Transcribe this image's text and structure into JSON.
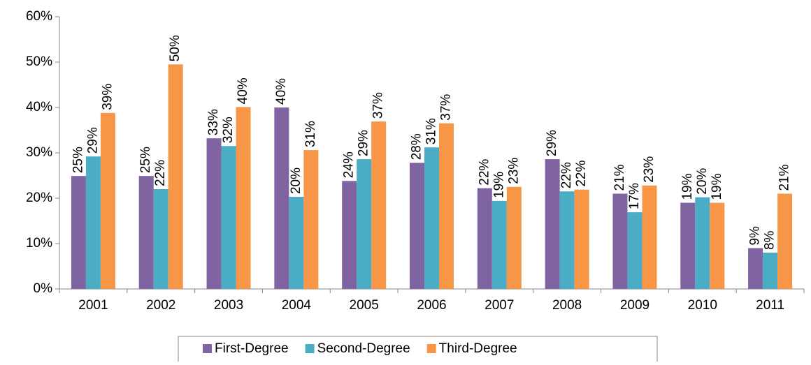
{
  "chart_data": {
    "type": "bar",
    "categories": [
      "2001",
      "2002",
      "2003",
      "2004",
      "2005",
      "2006",
      "2007",
      "2008",
      "2009",
      "2010",
      "2011"
    ],
    "series": [
      {
        "name": "First-Degree",
        "color": "#8064a2",
        "values": [
          24.9,
          24.9,
          33.2,
          40,
          23.8,
          27.8,
          22.2,
          28.6,
          21,
          19,
          9
        ],
        "value_labels": [
          "25%",
          "25%",
          "33%",
          "40%",
          "24%",
          "28%",
          "22%",
          "29%",
          "21%",
          "19%",
          "9%"
        ]
      },
      {
        "name": "Second-Degree",
        "color": "#4bacc6",
        "values": [
          29.2,
          22,
          31.5,
          20.3,
          28.6,
          31.2,
          19.4,
          21.5,
          16.9,
          20.2,
          8
        ],
        "value_labels": [
          "29%",
          "22%",
          "32%",
          "20%",
          "29%",
          "31%",
          "19%",
          "22%",
          "17%",
          "20%",
          "8%"
        ]
      },
      {
        "name": "Third-Degree",
        "color": "#f79646",
        "values": [
          38.8,
          49.5,
          40.1,
          30.6,
          36.9,
          36.5,
          22.5,
          21.9,
          22.8,
          19,
          21
        ],
        "value_labels": [
          "39%",
          "50%",
          "40%",
          "31%",
          "37%",
          "37%",
          "23%",
          "22%",
          "23%",
          "19%",
          "21%"
        ]
      }
    ],
    "ylim": [
      0,
      60
    ],
    "yticks": [
      {
        "value": 0,
        "label": "0%"
      },
      {
        "value": 10,
        "label": "10%"
      },
      {
        "value": 20,
        "label": "20%"
      },
      {
        "value": 30,
        "label": "30%"
      },
      {
        "value": 40,
        "label": "40%"
      },
      {
        "value": 50,
        "label": "50%"
      },
      {
        "value": 60,
        "label": "60%"
      }
    ],
    "grid": false,
    "legend": "bottom"
  }
}
